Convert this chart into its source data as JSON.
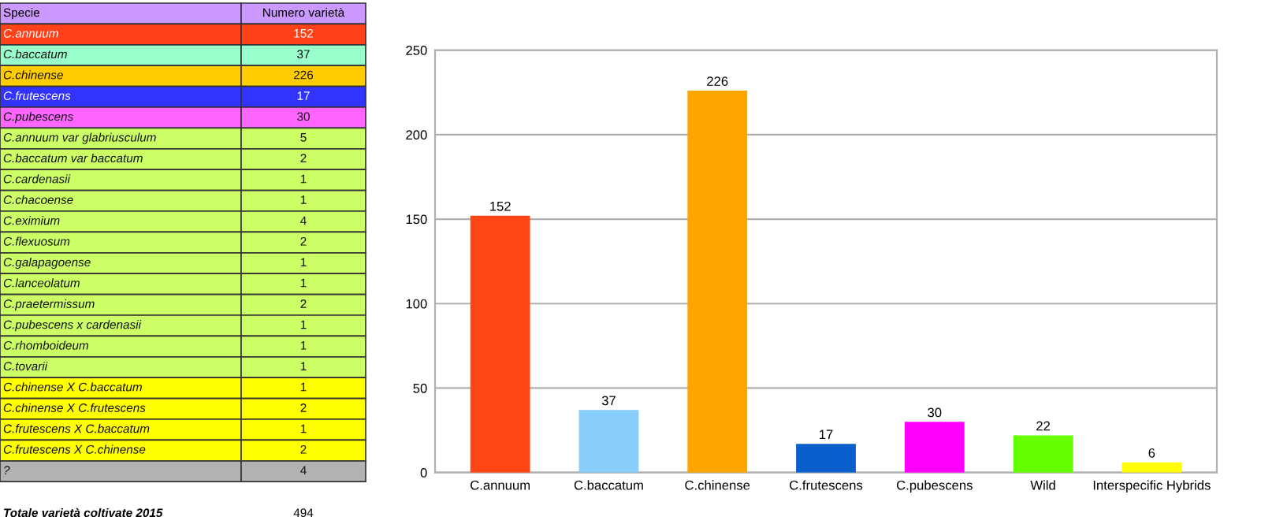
{
  "chart_data": [
    {
      "type": "other",
      "categories": [
        "C.annuum",
        "C.baccatum",
        "C.chinense",
        "C.frutescens",
        "C.pubescens",
        "C.annuum var glabriusculum",
        "C.baccatum var baccatum",
        "C.cardenasii",
        "C.chacoense",
        "C.eximium",
        "C.flexuosum",
        "C.galapagoense",
        "C.lanceolatum",
        "C.praetermissum",
        "C.pubescens x cardenasii",
        "C.rhomboideum",
        "C.tovarii",
        "C.chinense X C.baccatum",
        "C.chinense X C.frutescens",
        "C.frutescens X C.baccatum",
        "C.frutescens X C.chinense",
        "?"
      ],
      "values": [
        152,
        37,
        226,
        17,
        30,
        5,
        2,
        1,
        1,
        4,
        2,
        1,
        1,
        2,
        1,
        1,
        1,
        1,
        2,
        1,
        2,
        4
      ],
      "colors": [
        "#ff4119",
        "#99ffcc",
        "#ffcc00",
        "#3333ff",
        "#ff66ff",
        "#ccff66",
        "#ccff66",
        "#ccff66",
        "#ccff66",
        "#ccff66",
        "#ccff66",
        "#ccff66",
        "#ccff66",
        "#ccff66",
        "#ccff66",
        "#ccff66",
        "#ccff66",
        "#ffff00",
        "#ffff00",
        "#ffff00",
        "#ffff00",
        "#b2b2b2"
      ],
      "annotations": [
        "Specie",
        "Numero varietà",
        "Totale varietà coltivate 2015",
        "494"
      ],
      "data_labels": true
    },
    {
      "type": "bar",
      "categories": [
        "C.annuum",
        "C.baccatum",
        "C.chinense",
        "C.frutescens",
        "C.pubescens",
        "Wild",
        "Interspecific Hybrids"
      ],
      "values": [
        152,
        37,
        226,
        17,
        30,
        22,
        6
      ],
      "colors": [
        "#ff4513",
        "#87cefa",
        "#ffa500",
        "#0a5fcc",
        "#ff00ff",
        "#66ff00",
        "#ffff00"
      ],
      "ylim": [
        0,
        250
      ],
      "yticks": [
        0,
        50,
        100,
        150,
        200,
        250
      ],
      "grid": "y",
      "data_labels": true
    }
  ]
}
